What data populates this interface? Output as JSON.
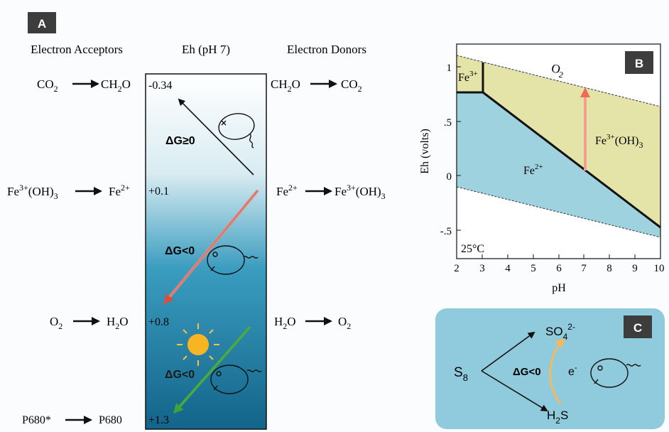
{
  "colors": {
    "panel_label_bg": "#3d3d3d",
    "column_top": "#ffffff",
    "column_bottom": "#13648a",
    "oxide_region": "#e4e3a8",
    "ferrous_region": "#9fd2df",
    "panel_c_bg": "#8fcbdd",
    "red_arrow": "#e86a5a",
    "orange_arrow": "#f3b962",
    "green_arrow": "#4aac3b",
    "sun": "#f7b423"
  },
  "panel_a": {
    "label": "A",
    "header_acceptors": "Electron Acceptors",
    "header_eh": "Eh (pH 7)",
    "header_donors": "Electron Donors",
    "dg_positive": "ΔG≥0",
    "dg_negative_1": "ΔG<0",
    "dg_negative_2": "ΔG<0",
    "rows": [
      {
        "acc_left": [
          "CO",
          "2",
          ""
        ],
        "acc_right": [
          "CH",
          "2",
          "O"
        ],
        "eh": "-0.34",
        "don_left": [
          "CH",
          "2",
          "O"
        ],
        "don_right": [
          "CO",
          "2",
          ""
        ]
      },
      {
        "eh": "+0.1",
        "don_left": "Fe",
        "don_left_sup": "2+",
        "don_right": "Fe",
        "don_right_sup": "3+",
        "don_right_tail": "(OH)",
        "don_right_sub": "3"
      },
      {
        "acc_left": [
          "O",
          "2",
          ""
        ],
        "acc_right": [
          "H",
          "2",
          "O"
        ],
        "eh": "+0.8",
        "don_left": [
          "H",
          "2",
          "O"
        ],
        "don_right": [
          "O",
          "2",
          ""
        ]
      },
      {
        "acc_left": "P680*",
        "acc_right": "P680",
        "eh": "+1.3"
      }
    ],
    "fe_acceptor": {
      "left": "Fe",
      "left_sup": "3+",
      "left_tail": "(OH)",
      "left_sub": "3",
      "right": "Fe",
      "right_sup": "2+"
    }
  },
  "panel_b": {
    "label": "B",
    "xlabel": "pH",
    "ylabel": "Eh (volts)",
    "x_ticks": [
      "2",
      "3",
      "4",
      "5",
      "6",
      "7",
      "8",
      "9",
      "10"
    ],
    "y_ticks": [
      "1",
      ".5",
      "0",
      "-.5"
    ],
    "temp_label": "25°C",
    "region_labels": {
      "o2": "O",
      "o2_sub": "2",
      "fe3_top": "Fe",
      "fe3_top_sup": "3+",
      "fe2": "Fe",
      "fe2_sup": "2+",
      "feoh": "Fe",
      "feoh_sup": "3+",
      "feoh_tail": "(OH)",
      "feoh_sub": "3"
    }
  },
  "panel_c": {
    "label": "C",
    "s8": "S",
    "s8_sub": "8",
    "so4": "SO",
    "so4_sub": "4",
    "so4_sup": "2-",
    "h2s_h": "H",
    "h2s_sub": "2",
    "h2s_s": "S",
    "dg": "ΔG<0",
    "electron": "e",
    "electron_sup": "-"
  }
}
